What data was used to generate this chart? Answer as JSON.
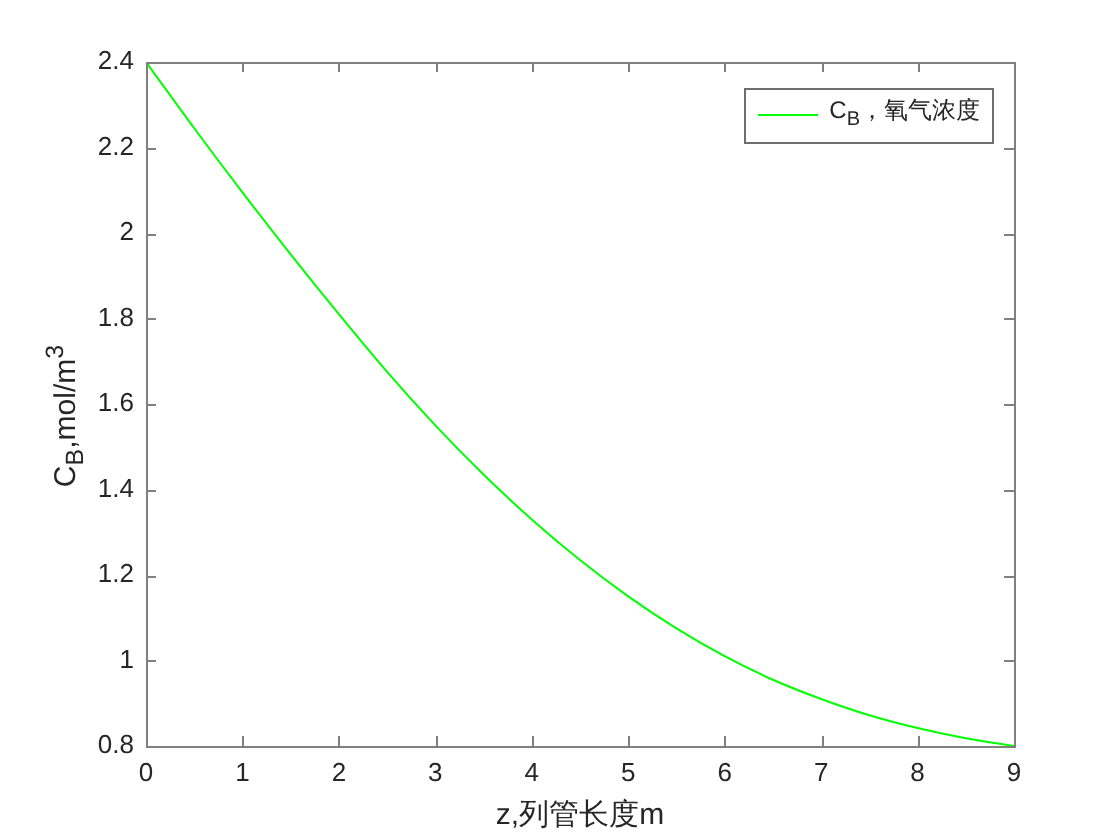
{
  "chart_data": {
    "type": "line",
    "xlabel": "z,列管长度m",
    "ylabel": "C$_{B}$,mol/m$^{3}$",
    "x": [
      0,
      0.5,
      1,
      1.5,
      2,
      2.5,
      3,
      3.5,
      4,
      4.5,
      5,
      5.5,
      6,
      6.5,
      7,
      7.5,
      8,
      8.5,
      9
    ],
    "series": [
      {
        "name": "C$_{B}$，氧气浓度",
        "color": "#00ff00",
        "values": [
          2.4,
          2.245,
          2.095,
          1.95,
          1.81,
          1.675,
          1.55,
          1.435,
          1.33,
          1.235,
          1.15,
          1.075,
          1.01,
          0.955,
          0.91,
          0.872,
          0.842,
          0.818,
          0.8
        ]
      }
    ],
    "xlim": [
      0,
      9
    ],
    "ylim": [
      0.8,
      2.4
    ],
    "xticks": [
      0,
      1,
      2,
      3,
      4,
      5,
      6,
      7,
      8,
      9
    ],
    "yticks": [
      0.8,
      1,
      1.2,
      1.4,
      1.6,
      1.8,
      2,
      2.2,
      2.4
    ],
    "legend": "top right"
  }
}
